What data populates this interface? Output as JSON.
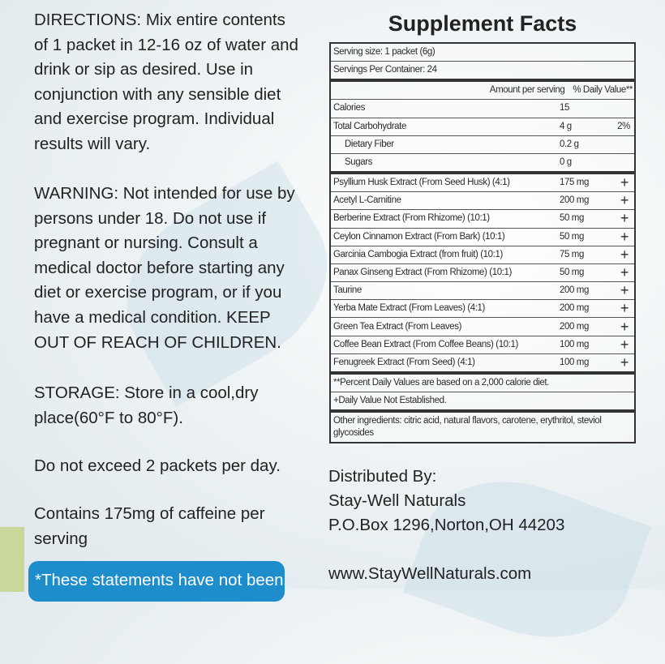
{
  "left": {
    "directions": [
      "DIRECTIONS: Mix entire contents",
      "of 1 packet in 12-16 oz of water and",
      "drink or sip as desired. Use in",
      "conjunction with any sensible diet",
      "and exercise program. Individual",
      "results will vary."
    ],
    "warning": [
      "WARNING: Not intended for use by",
      "persons under 18. Do not use if",
      "pregnant or nursing. Consult a",
      "medical doctor before starting any",
      "diet or exercise program, or if you",
      "have a medical condition. KEEP",
      "OUT OF REACH OF CHILDREN."
    ],
    "storage": [
      "STORAGE: Store in a cool,dry",
      "place(60°F to 80°F)."
    ],
    "limit": "Do not exceed 2 packets per day.",
    "caffeine": [
      "Contains 175mg of caffeine per",
      "serving"
    ],
    "disclaimer": "*These statements have not been"
  },
  "facts": {
    "title": "Supplement Facts",
    "serving_size": "Serving size: 1 packet (6g)",
    "servings_per_container": "Servings Per Container: 24",
    "col_amount": "Amount per serving",
    "col_dv": "% Daily Value**",
    "nutrients": [
      {
        "name": "Calories",
        "amount": "15",
        "dv": ""
      },
      {
        "name": "Total Carbohydrate",
        "amount": "4 g",
        "dv": "2%"
      },
      {
        "name": "Dietary Fiber",
        "amount": "0.2 g",
        "dv": ""
      },
      {
        "name": "Sugars",
        "amount": "0 g",
        "dv": ""
      }
    ],
    "ingredients": [
      {
        "name": "Psyllium Husk Extract (From Seed Husk) (4:1)",
        "amount": "175 mg",
        "dv": "+"
      },
      {
        "name": "Acetyl L-Carnitine",
        "amount": "200 mg",
        "dv": "+"
      },
      {
        "name": "Berberine Extract (From Rhizome) (10:1)",
        "amount": "50 mg",
        "dv": "+"
      },
      {
        "name": "Ceylon Cinnamon Extract (From Bark) (10:1)",
        "amount": "50 mg",
        "dv": "+"
      },
      {
        "name": "Garcinia Cambogia Extract (from fruit) (10:1)",
        "amount": "75 mg",
        "dv": "+"
      },
      {
        "name": "Panax Ginseng Extract (From Rhizome) (10:1)",
        "amount": "50 mg",
        "dv": "+"
      },
      {
        "name": "Taurine",
        "amount": "200 mg",
        "dv": "+"
      },
      {
        "name": "Yerba Mate Extract (From Leaves) (4:1)",
        "amount": "200 mg",
        "dv": "+"
      },
      {
        "name": "Green Tea Extract (From Leaves)",
        "amount": "200 mg",
        "dv": "+"
      },
      {
        "name": "Coffee Bean Extract (From Coffee Beans) (10:1)",
        "amount": "100 mg",
        "dv": "+"
      },
      {
        "name": "Fenugreek Extract (From Seed) (4:1)",
        "amount": "100 mg",
        "dv": "+"
      }
    ],
    "footnote_dv": "**Percent Daily Values are based on a 2,000 calorie diet.",
    "footnote_dagger": "+Daily Value Not Established.",
    "other_ingredients": "Other ingredients: citric acid, natural flavors, carotene, erythritol, steviol glycosides"
  },
  "distributor": {
    "label": "Distributed By:",
    "name": "Stay-Well Naturals",
    "address": "P.O.Box 1296,Norton,OH 44203",
    "website": "www.StayWellNaturals.com"
  }
}
